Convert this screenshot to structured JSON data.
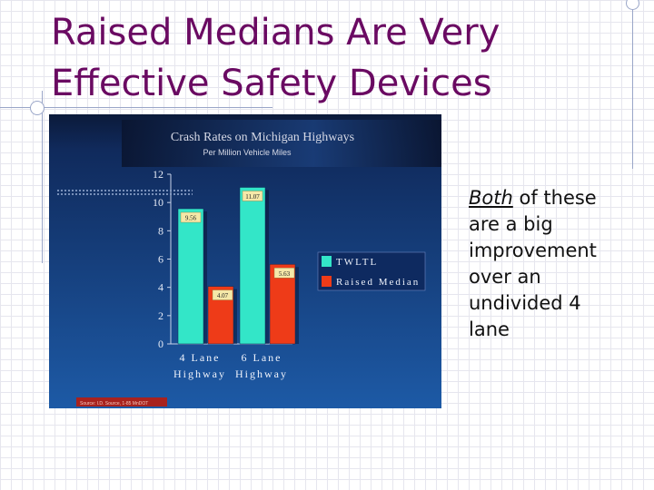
{
  "slide": {
    "title_lines": [
      "Raised Medians Are Very",
      "Effective Safety Devices"
    ],
    "note": {
      "emphasis": "Both",
      "rest": " of these are a big improvement over an undivided 4 lane"
    }
  },
  "colors": {
    "title": "#6a0a62",
    "twltl": "#33e6c8",
    "raised_median": "#ee3b18",
    "chart_bg_top": "#0b1a3a",
    "chart_bg_bottom": "#1d5aa6"
  },
  "chart_data": {
    "type": "bar",
    "title": "Crash Rates on Michigan Highways",
    "subtitle": "Per Million Vehicle Miles",
    "categories": [
      "4 Lane Highway",
      "6 Lane Highway"
    ],
    "category_lines": [
      [
        "4 Lane",
        "Highway"
      ],
      [
        "6 Lane",
        "Highway"
      ]
    ],
    "series": [
      {
        "name": "TWLTL",
        "values": [
          9.56,
          11.07
        ],
        "labels": [
          "9.56",
          "11.07"
        ],
        "color": "#33e6c8"
      },
      {
        "name": "Raised Median",
        "values": [
          4.07,
          5.63
        ],
        "labels": [
          "4.07",
          "5.63"
        ],
        "color": "#ee3b18"
      }
    ],
    "ylim": [
      0,
      12
    ],
    "yticks": [
      "0",
      "2",
      "4",
      "6",
      "8",
      "10",
      "12"
    ],
    "legend": "right",
    "source": "Source: I.D. Source, 1-85 MnDOT"
  }
}
